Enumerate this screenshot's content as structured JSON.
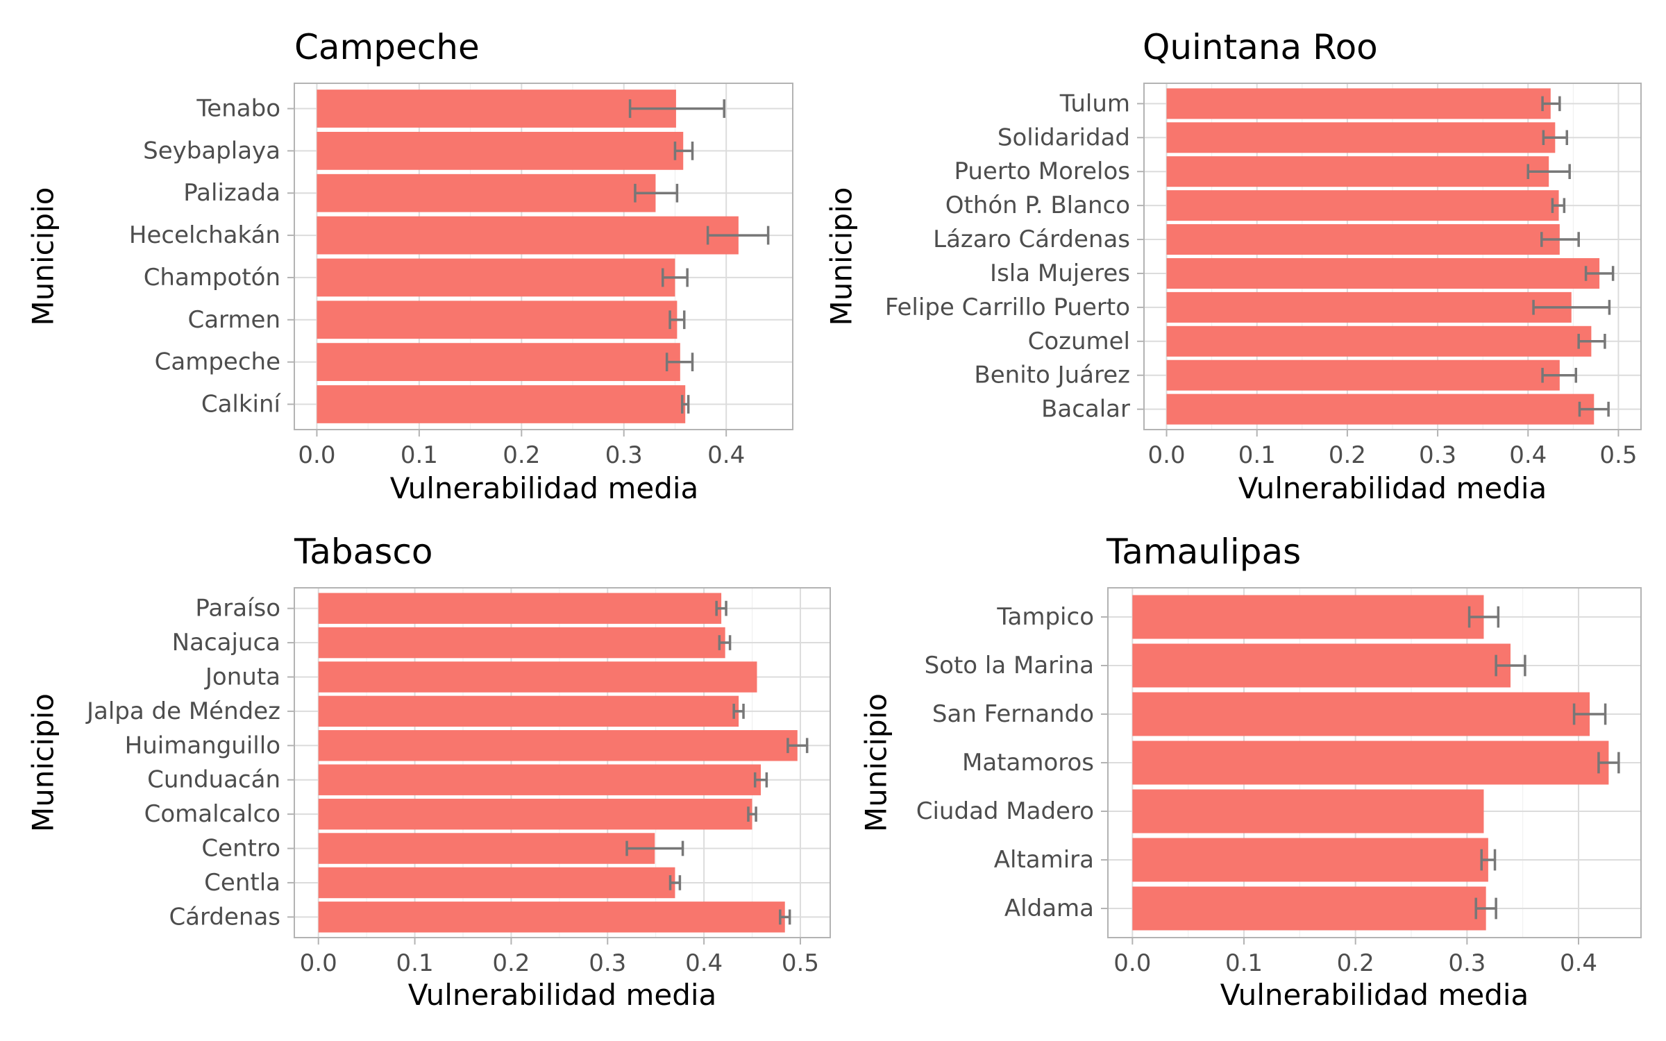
{
  "chart_data": [
    {
      "type": "bar",
      "orientation": "horizontal",
      "title": "Campeche",
      "xlabel": "Vulnerabilidad media",
      "ylabel": "Municipio",
      "xlim": [
        -0.022,
        0.465
      ],
      "xticks": [
        0.0,
        0.1,
        0.2,
        0.3,
        0.4
      ],
      "tick_labels": [
        "0.0",
        "0.1",
        "0.2",
        "0.3",
        "0.4"
      ],
      "bar_color": "#f8766d",
      "error_color": "#777777",
      "categories": [
        "Tenabo",
        "Seybaplaya",
        "Palizada",
        "Hecelchakán",
        "Champotón",
        "Carmen",
        "Campeche",
        "Calkiní"
      ],
      "values": [
        0.351,
        0.358,
        0.331,
        0.412,
        0.35,
        0.352,
        0.355,
        0.36
      ],
      "err_low": [
        0.306,
        0.35,
        0.311,
        0.382,
        0.338,
        0.345,
        0.342,
        0.357
      ],
      "err_high": [
        0.398,
        0.367,
        0.352,
        0.441,
        0.362,
        0.359,
        0.367,
        0.363
      ]
    },
    {
      "type": "bar",
      "orientation": "horizontal",
      "title": "Quintana Roo",
      "xlabel": "Vulnerabilidad media",
      "ylabel": "Municipio",
      "xlim": [
        -0.025,
        0.525
      ],
      "xticks": [
        0.0,
        0.1,
        0.2,
        0.3,
        0.4,
        0.5
      ],
      "tick_labels": [
        "0.0",
        "0.1",
        "0.2",
        "0.3",
        "0.4",
        "0.5"
      ],
      "bar_color": "#f8766d",
      "error_color": "#777777",
      "categories": [
        "Tulum",
        "Solidaridad",
        "Puerto Morelos",
        "Othón P. Blanco",
        "Lázaro Cárdenas",
        "Isla Mujeres",
        "Felipe Carrillo Puerto",
        "Cozumel",
        "Benito Juárez",
        "Bacalar"
      ],
      "values": [
        0.425,
        0.43,
        0.423,
        0.434,
        0.435,
        0.479,
        0.448,
        0.47,
        0.435,
        0.473
      ],
      "err_low": [
        0.416,
        0.417,
        0.4,
        0.427,
        0.415,
        0.464,
        0.406,
        0.456,
        0.416,
        0.457
      ],
      "err_high": [
        0.435,
        0.443,
        0.446,
        0.44,
        0.456,
        0.494,
        0.49,
        0.485,
        0.453,
        0.489
      ]
    },
    {
      "type": "bar",
      "orientation": "horizontal",
      "title": "Tabasco",
      "xlabel": "Vulnerabilidad media",
      "ylabel": "Municipio",
      "xlim": [
        -0.025,
        0.531
      ],
      "xticks": [
        0.0,
        0.1,
        0.2,
        0.3,
        0.4,
        0.5
      ],
      "tick_labels": [
        "0.0",
        "0.1",
        "0.2",
        "0.3",
        "0.4",
        "0.5"
      ],
      "bar_color": "#f8766d",
      "error_color": "#777777",
      "categories": [
        "Paraíso",
        "Nacajuca",
        "Jonuta",
        "Jalpa de Méndez",
        "Huimanguillo",
        "Cunduacán",
        "Comalcalco",
        "Centro",
        "Centla",
        "Cárdenas"
      ],
      "values": [
        0.418,
        0.422,
        0.455,
        0.436,
        0.497,
        0.459,
        0.45,
        0.349,
        0.37,
        0.484
      ],
      "err_low": [
        0.413,
        0.416,
        0.455,
        0.431,
        0.487,
        0.453,
        0.446,
        0.32,
        0.365,
        0.479
      ],
      "err_high": [
        0.423,
        0.427,
        0.455,
        0.441,
        0.507,
        0.465,
        0.454,
        0.378,
        0.375,
        0.489
      ]
    },
    {
      "type": "bar",
      "orientation": "horizontal",
      "title": "Tamaulipas",
      "xlabel": "Vulnerabilidad media",
      "ylabel": "Municipio",
      "xlim": [
        -0.022,
        0.456
      ],
      "xticks": [
        0.0,
        0.1,
        0.2,
        0.3,
        0.4
      ],
      "tick_labels": [
        "0.0",
        "0.1",
        "0.2",
        "0.3",
        "0.4"
      ],
      "bar_color": "#f8766d",
      "error_color": "#777777",
      "categories": [
        "Tampico",
        "Soto la Marina",
        "San Fernando",
        "Matamoros",
        "Ciudad Madero",
        "Altamira",
        "Aldama"
      ],
      "values": [
        0.315,
        0.339,
        0.41,
        0.427,
        0.315,
        0.319,
        0.317
      ],
      "err_low": [
        0.302,
        0.326,
        0.396,
        0.418,
        0.315,
        0.313,
        0.308
      ],
      "err_high": [
        0.328,
        0.352,
        0.424,
        0.436,
        0.315,
        0.325,
        0.326
      ]
    }
  ]
}
